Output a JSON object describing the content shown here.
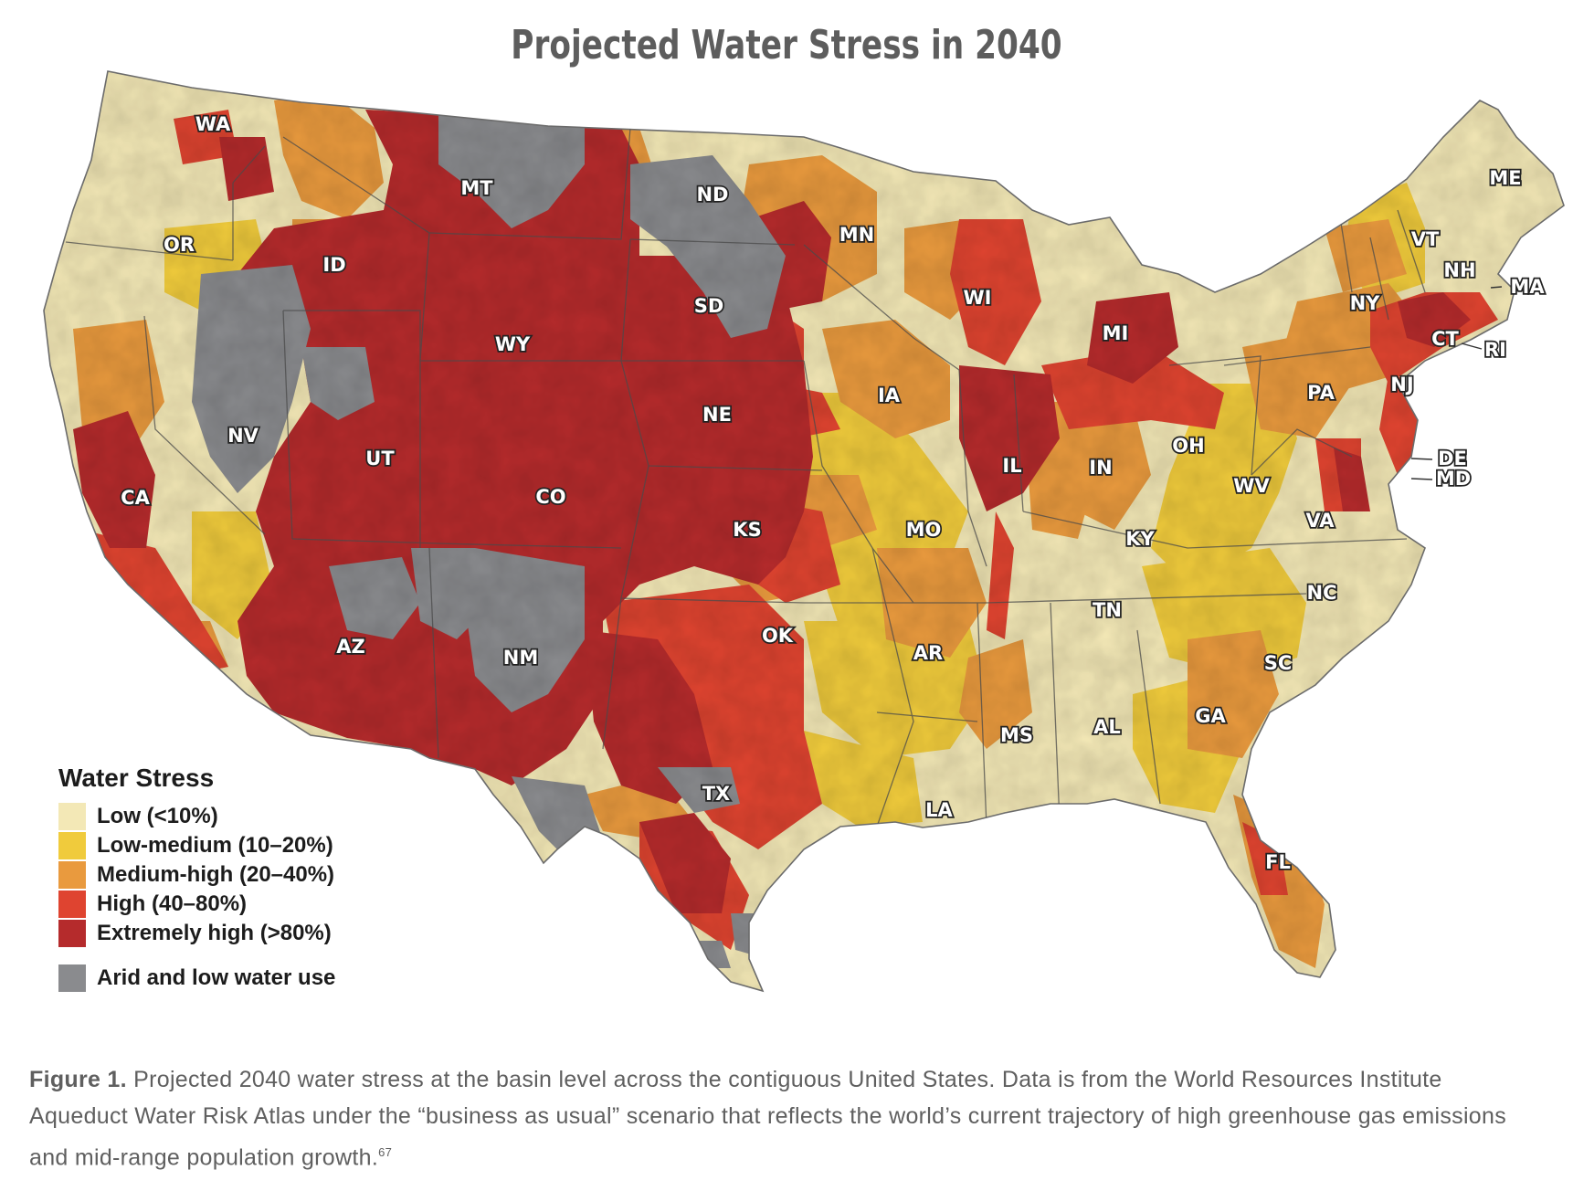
{
  "title": "Projected Water Stress in 2040",
  "legend": {
    "title": "Water Stress",
    "items": [
      {
        "label": "Low (<10%)",
        "color": "#f3e8b6"
      },
      {
        "label": "Low-medium (10–20%)",
        "color": "#f0cb3c"
      },
      {
        "label": "Medium-high (20–40%)",
        "color": "#e99a3e"
      },
      {
        "label": "High (40–80%)",
        "color": "#df4430"
      },
      {
        "label": "Extremely high (>80%)",
        "color": "#b52b2c"
      },
      {
        "label": "Arid and low water use",
        "color": "#8a8b8e"
      }
    ]
  },
  "states": [
    "WA",
    "MT",
    "ND",
    "MN",
    "ME",
    "OR",
    "ID",
    "VT",
    "NH",
    "MA",
    "WI",
    "SD",
    "NY",
    "WY",
    "MI",
    "CT",
    "RI",
    "IA",
    "PA",
    "NJ",
    "NE",
    "NV",
    "UT",
    "OH",
    "DE",
    "MD",
    "IL",
    "IN",
    "WV",
    "CA",
    "CO",
    "KS",
    "MO",
    "KY",
    "VA",
    "NC",
    "TN",
    "OK",
    "AZ",
    "NM",
    "AR",
    "SC",
    "GA",
    "AL",
    "MS",
    "LA",
    "TX",
    "FL"
  ],
  "caption": {
    "lead": "Figure 1.",
    "text": " Projected 2040 water stress at the basin level across the contiguous United States. Data is from the World Resources Institute Aqueduct Water Risk Atlas under the “business as usual” scenario that reflects the world’s current trajectory of high greenhouse gas emissions and mid-range population growth.",
    "ref": "67"
  }
}
